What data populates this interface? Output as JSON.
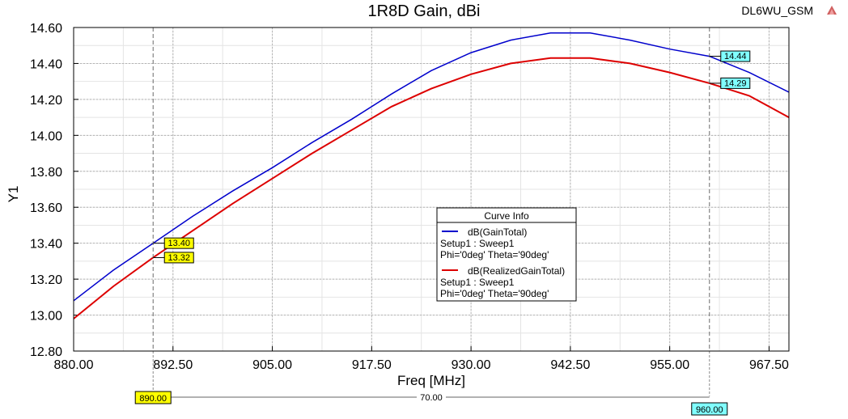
{
  "header": {
    "title": "1R8D Gain, dBi",
    "project": "DL6WU_GSM"
  },
  "legend": {
    "title": "Curve Info",
    "entries": [
      {
        "name": "dB(GainTotal)",
        "line1": "Setup1 : Sweep1",
        "line2": "Phi='0deg' Theta='90deg'",
        "color": "#0000cc"
      },
      {
        "name": "dB(RealizedGainTotal)",
        "line1": "Setup1 : Sweep1",
        "line2": "Phi='0deg' Theta='90deg'",
        "color": "#dd0000"
      }
    ]
  },
  "markers": {
    "x1_label": "890.00",
    "x2_label": "960.00",
    "delta_label": "70.00",
    "values": [
      {
        "x": 890,
        "y": 13.4,
        "label": "13.40",
        "series": 0,
        "fill": "#ffff00"
      },
      {
        "x": 890,
        "y": 13.32,
        "label": "13.32",
        "series": 1,
        "fill": "#ffff00"
      },
      {
        "x": 960,
        "y": 14.44,
        "label": "14.44",
        "series": 0,
        "fill": "#80ffff"
      },
      {
        "x": 960,
        "y": 14.29,
        "label": "14.29",
        "series": 1,
        "fill": "#80ffff"
      }
    ]
  },
  "chart_data": {
    "type": "line",
    "xlabel": "Freq [MHz]",
    "ylabel": "Y1",
    "xlim": [
      880,
      970
    ],
    "ylim": [
      12.8,
      14.6
    ],
    "xticks": [
      880,
      892.5,
      905,
      917.5,
      930,
      942.5,
      955,
      967.5
    ],
    "xtick_labels": [
      "880.00",
      "892.50",
      "905.00",
      "917.50",
      "930.00",
      "942.50",
      "955.00",
      "967.50"
    ],
    "yticks": [
      12.8,
      13.0,
      13.2,
      13.4,
      13.6,
      13.8,
      14.0,
      14.2,
      14.4,
      14.6
    ],
    "ytick_labels": [
      "12.80",
      "13.00",
      "13.20",
      "13.40",
      "13.60",
      "13.80",
      "14.00",
      "14.20",
      "14.40",
      "14.60"
    ],
    "grid": true,
    "legend_position": "center-right",
    "x": [
      880,
      885,
      890,
      895,
      900,
      905,
      910,
      915,
      920,
      925,
      930,
      935,
      940,
      945,
      950,
      955,
      960,
      965,
      970
    ],
    "series": [
      {
        "name": "dB(GainTotal)",
        "color": "#0000cc",
        "values": [
          13.08,
          13.25,
          13.4,
          13.55,
          13.69,
          13.82,
          13.96,
          14.09,
          14.23,
          14.36,
          14.46,
          14.53,
          14.57,
          14.57,
          14.53,
          14.48,
          14.44,
          14.35,
          14.24
        ]
      },
      {
        "name": "dB(RealizedGainTotal)",
        "color": "#dd0000",
        "values": [
          12.98,
          13.16,
          13.32,
          13.47,
          13.62,
          13.76,
          13.9,
          14.03,
          14.16,
          14.26,
          14.34,
          14.4,
          14.43,
          14.43,
          14.4,
          14.35,
          14.29,
          14.22,
          14.1
        ]
      }
    ]
  }
}
